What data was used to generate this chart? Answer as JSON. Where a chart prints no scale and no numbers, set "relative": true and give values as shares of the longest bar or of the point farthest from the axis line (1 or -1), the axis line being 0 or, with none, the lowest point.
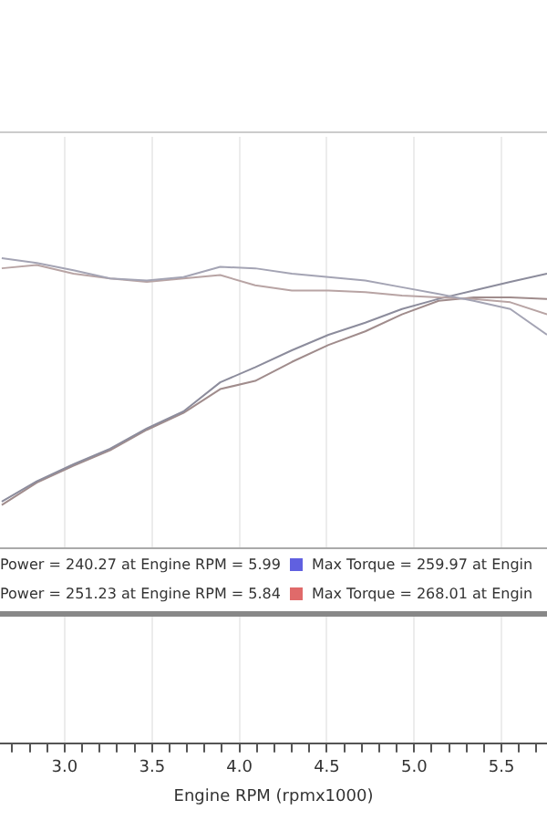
{
  "chart_data": {
    "type": "line",
    "xlabel": "Engine RPM (rpmx1000)",
    "relative": true,
    "marker": "none",
    "grid": "x",
    "x": [
      2.64,
      2.84,
      3.05,
      3.26,
      3.47,
      3.68,
      3.89,
      4.09,
      4.3,
      4.51,
      4.72,
      4.93,
      5.14,
      5.34,
      5.55,
      5.76
    ],
    "xlim": [
      2.63,
      5.76
    ],
    "xticks": [
      {
        "value": 2.7,
        "label": null
      },
      {
        "value": 2.8,
        "label": null
      },
      {
        "value": 2.9,
        "label": null
      },
      {
        "value": 3,
        "label": "3.0"
      },
      {
        "value": 3.1,
        "label": null
      },
      {
        "value": 3.2,
        "label": null
      },
      {
        "value": 3.3,
        "label": null
      },
      {
        "value": 3.4,
        "label": null
      },
      {
        "value": 3.5,
        "label": "3.5"
      },
      {
        "value": 3.6,
        "label": null
      },
      {
        "value": 3.7,
        "label": null
      },
      {
        "value": 3.8,
        "label": null
      },
      {
        "value": 3.9,
        "label": null
      },
      {
        "value": 4,
        "label": "4.0"
      },
      {
        "value": 4.1,
        "label": null
      },
      {
        "value": 4.2,
        "label": null
      },
      {
        "value": 4.3,
        "label": null
      },
      {
        "value": 4.4,
        "label": null
      },
      {
        "value": 4.5,
        "label": "4.5"
      },
      {
        "value": 4.6,
        "label": null
      },
      {
        "value": 4.7,
        "label": null
      },
      {
        "value": 4.8,
        "label": null
      },
      {
        "value": 4.9,
        "label": null
      },
      {
        "value": 5,
        "label": "5.0"
      },
      {
        "value": 5.1,
        "label": null
      },
      {
        "value": 5.2,
        "label": null
      },
      {
        "value": 5.3,
        "label": null
      },
      {
        "value": 5.4,
        "label": null
      },
      {
        "value": 5.5,
        "label": "5.5"
      },
      {
        "value": 5.6,
        "label": null
      },
      {
        "value": 5.7,
        "label": null
      }
    ],
    "series": [
      {
        "color": "#a4a4b4",
        "values": [
          1.0,
          0.99,
          0.975,
          0.958,
          0.954,
          0.961,
          0.982,
          0.979,
          0.968,
          0.961,
          0.954,
          0.94,
          0.926,
          0.912,
          0.895,
          0.842
        ]
      },
      {
        "color": "#b8a4a4",
        "values": [
          0.979,
          0.986,
          0.968,
          0.958,
          0.951,
          0.958,
          0.965,
          0.944,
          0.933,
          0.933,
          0.93,
          0.923,
          0.919,
          0.916,
          0.909,
          0.884
        ]
      },
      {
        "color": "#8c8c9c",
        "values": [
          0.498,
          0.54,
          0.575,
          0.607,
          0.649,
          0.684,
          0.744,
          0.775,
          0.81,
          0.842,
          0.867,
          0.895,
          0.916,
          0.933,
          0.951,
          0.968
        ]
      },
      {
        "color": "#a08c8c",
        "values": [
          0.491,
          0.537,
          0.572,
          0.604,
          0.646,
          0.681,
          0.73,
          0.747,
          0.786,
          0.821,
          0.849,
          0.884,
          0.912,
          0.919,
          0.919,
          0.916
        ]
      }
    ],
    "annotations": [
      "Power = 240.27 at Engine RPM = 5.99",
      "Max Torque = 259.97 at Engin",
      "Power = 251.23 at Engine RPM = 5.84",
      "Max Torque = 268.01 at Engin"
    ]
  }
}
